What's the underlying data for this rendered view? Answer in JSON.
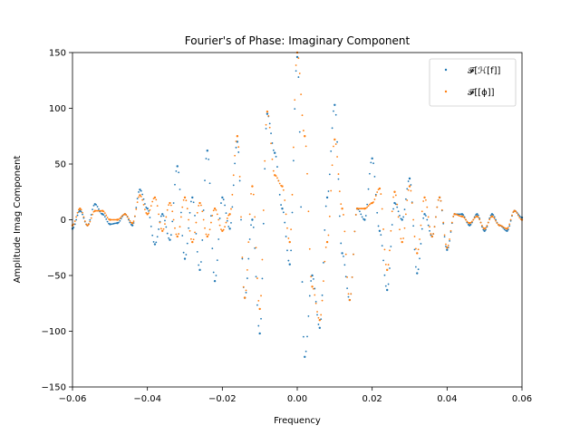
{
  "chart_data": {
    "type": "scatter",
    "title": "Fourier's of Phase: Imaginary Component",
    "xlabel": "Frequency",
    "ylabel": "Amplitude Imag Component",
    "xlim": [
      -0.06,
      0.06
    ],
    "ylim": [
      -150,
      150
    ],
    "x_ticks": [
      -0.06,
      -0.04,
      -0.02,
      0.0,
      0.02,
      0.04,
      0.06
    ],
    "x_tick_labels": [
      "−0.06",
      "−0.04",
      "−0.02",
      "0.00",
      "0.02",
      "0.04",
      "0.06"
    ],
    "y_ticks": [
      -150,
      -100,
      -50,
      0,
      50,
      100,
      150
    ],
    "y_tick_labels": [
      "−150",
      "−100",
      "−50",
      "0",
      "50",
      "100",
      "150"
    ],
    "grid": false,
    "legend_position": "top-right",
    "series": [
      {
        "name": "𝓕[ℋ[f]]",
        "color": "#1f77b4",
        "x": [
          -0.06,
          -0.058,
          -0.056,
          -0.054,
          -0.052,
          -0.05,
          -0.048,
          -0.046,
          -0.044,
          -0.042,
          -0.04,
          -0.038,
          -0.036,
          -0.034,
          -0.032,
          -0.03,
          -0.028,
          -0.026,
          -0.024,
          -0.022,
          -0.02,
          -0.018,
          -0.016,
          -0.014,
          -0.012,
          -0.01,
          -0.008,
          -0.006,
          -0.004,
          -0.002,
          0.0,
          0.002,
          0.004,
          0.006,
          0.008,
          0.01,
          0.012,
          0.014,
          0.016,
          0.018,
          0.02,
          0.022,
          0.024,
          0.026,
          0.028,
          0.03,
          0.032,
          0.034,
          0.036,
          0.038,
          0.04,
          0.042,
          0.044,
          0.046,
          0.048,
          0.05,
          0.052,
          0.054,
          0.056,
          0.058,
          0.06
        ],
        "y": [
          -8,
          8,
          -5,
          14,
          5,
          -4,
          -3,
          5,
          -5,
          27,
          10,
          -22,
          5,
          -18,
          48,
          -35,
          20,
          -45,
          62,
          -55,
          20,
          -8,
          70,
          -70,
          0,
          -102,
          95,
          60,
          10,
          -40,
          146,
          -123,
          -50,
          -97,
          20,
          103,
          -30,
          -72,
          10,
          0,
          55,
          -10,
          -63,
          15,
          0,
          37,
          -48,
          5,
          -15,
          20,
          -27,
          5,
          5,
          -5,
          5,
          -10,
          5,
          -5,
          -10,
          8,
          2
        ]
      },
      {
        "name": "𝓕[[ϕ]]",
        "color": "#ff7f0e",
        "x": [
          -0.06,
          -0.058,
          -0.056,
          -0.054,
          -0.052,
          -0.05,
          -0.048,
          -0.046,
          -0.044,
          -0.042,
          -0.04,
          -0.038,
          -0.036,
          -0.034,
          -0.032,
          -0.03,
          -0.028,
          -0.026,
          -0.024,
          -0.022,
          -0.02,
          -0.018,
          -0.016,
          -0.014,
          -0.012,
          -0.01,
          -0.008,
          -0.006,
          -0.004,
          -0.002,
          0.0,
          0.002,
          0.004,
          0.006,
          0.008,
          0.01,
          0.012,
          0.014,
          0.016,
          0.018,
          0.02,
          0.022,
          0.024,
          0.026,
          0.028,
          0.03,
          0.032,
          0.034,
          0.036,
          0.038,
          0.04,
          0.042,
          0.044,
          0.046,
          0.048,
          0.05,
          0.052,
          0.054,
          0.056,
          0.058,
          0.06
        ],
        "y": [
          -5,
          10,
          -5,
          8,
          8,
          0,
          0,
          5,
          -3,
          22,
          5,
          20,
          -10,
          15,
          -15,
          20,
          -20,
          15,
          -15,
          10,
          -10,
          5,
          75,
          -70,
          30,
          -80,
          97,
          40,
          30,
          -20,
          150,
          75,
          -60,
          -90,
          -20,
          72,
          10,
          -72,
          10,
          10,
          15,
          28,
          -45,
          25,
          -20,
          30,
          -30,
          20,
          -15,
          20,
          -25,
          5,
          3,
          -3,
          3,
          -8,
          3,
          -5,
          -8,
          8,
          0
        ]
      }
    ]
  }
}
